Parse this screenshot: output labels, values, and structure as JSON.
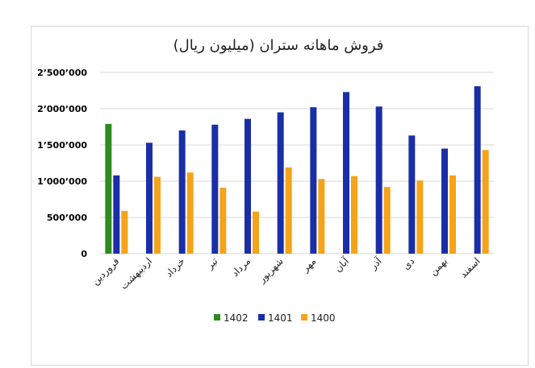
{
  "chart_data": {
    "type": "bar",
    "title": "فروش ماهانه ستران (میلیون ریال)",
    "categories": [
      "فروردین",
      "اردیبهشت",
      "خرداد",
      "تیر",
      "مرداد",
      "شهریور",
      "مهر",
      "آبان",
      "آذر",
      "دی",
      "بهمن",
      "اسفند"
    ],
    "series": [
      {
        "name": "1402",
        "color": "#2e8b1e",
        "values": [
          1790000,
          null,
          null,
          null,
          null,
          null,
          null,
          null,
          null,
          null,
          null,
          null
        ]
      },
      {
        "name": "1401",
        "color": "#1a2ea6",
        "values": [
          1080000,
          1530000,
          1700000,
          1780000,
          1860000,
          1950000,
          2020000,
          2230000,
          2030000,
          1630000,
          1450000,
          2310000
        ]
      },
      {
        "name": "1400",
        "color": "#f5a31a",
        "values": [
          590000,
          1060000,
          1120000,
          910000,
          580000,
          1190000,
          1030000,
          1070000,
          920000,
          1010000,
          1080000,
          1430000
        ]
      }
    ],
    "ylim": [
      0,
      2500000
    ],
    "yticks": [
      "0",
      "500٬000",
      "1٬000٬000",
      "1٬500٬000",
      "2٬000٬000",
      "2٬500٬000"
    ],
    "grid": true,
    "legend_position": "bottom"
  }
}
